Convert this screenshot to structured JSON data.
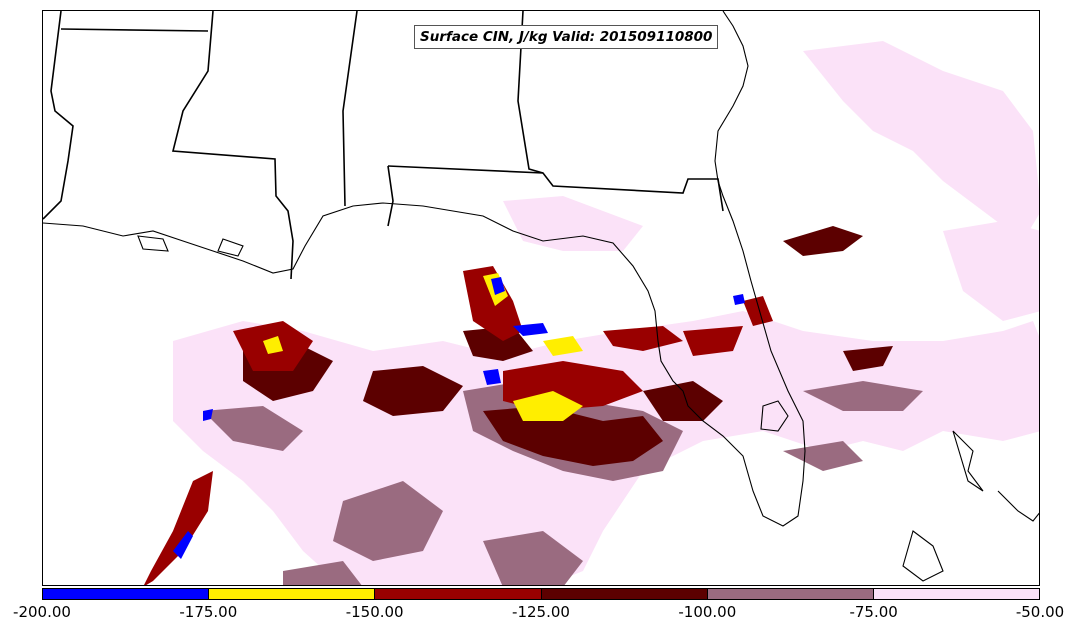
{
  "title": "Surface CIN, J/kg Valid: 201509110800",
  "colorbar": {
    "ticks": [
      "-200.00",
      "-175.00",
      "-150.00",
      "-125.00",
      "-100.00",
      "-75.00",
      "-50.00"
    ],
    "bins": [
      {
        "from": -200,
        "to": -175,
        "color": "#0000ff"
      },
      {
        "from": -175,
        "to": -150,
        "color": "#ffee00"
      },
      {
        "from": -150,
        "to": -125,
        "color": "#990000"
      },
      {
        "from": -125,
        "to": -100,
        "color": "#5c0000"
      },
      {
        "from": -100,
        "to": -75,
        "color": "#9a6b80"
      },
      {
        "from": -75,
        "to": -50,
        "color": "#fbe2f8"
      }
    ]
  }
}
